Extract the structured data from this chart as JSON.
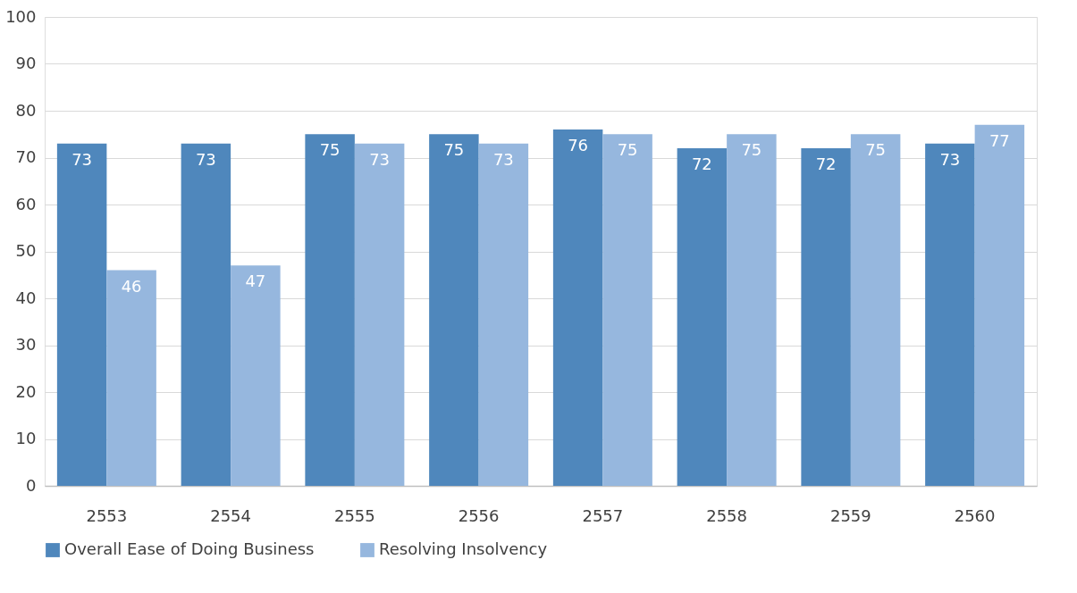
{
  "chart_data": {
    "type": "bar",
    "categories": [
      "2553",
      "2554",
      "2555",
      "2556",
      "2557",
      "2558",
      "2559",
      "2560"
    ],
    "series": [
      {
        "name": "Overall Ease of Doing Business",
        "color": "#4f87bc",
        "values": [
          73,
          73,
          75,
          75,
          76,
          72,
          72,
          73
        ]
      },
      {
        "name": "Resolving Insolvency",
        "color": "#96b7de",
        "values": [
          46,
          47,
          73,
          73,
          75,
          75,
          75,
          77
        ]
      }
    ],
    "ylim": [
      0,
      100
    ],
    "yticks": [
      0,
      10,
      20,
      30,
      40,
      50,
      60,
      70,
      80,
      90,
      100
    ],
    "grid": "y",
    "legend": "bottom",
    "data_labels": true
  }
}
